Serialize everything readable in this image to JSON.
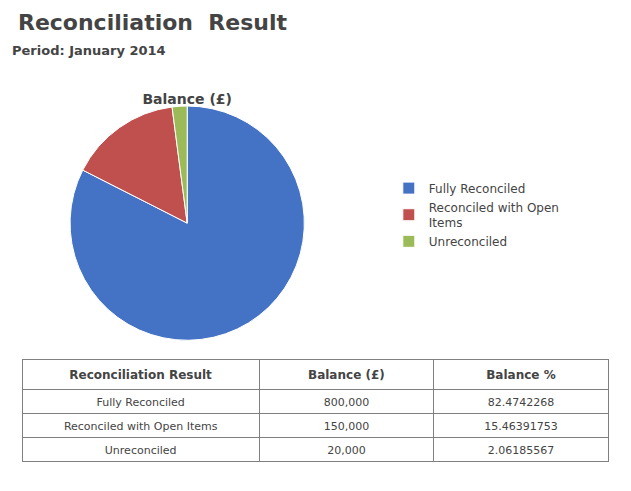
{
  "title": "Reconciliation  Result",
  "subtitle": "Period: January 2014",
  "chart_data": [
    {
      "type": "pie",
      "title": "Balance (£)",
      "categories": [
        "Fully Reconciled",
        "Reconciled with Open\nItems",
        "Unreconciled"
      ],
      "values": [
        800000,
        150000,
        20000
      ],
      "colors": [
        "#4472C4",
        "#C0504D",
        "#9BBB59"
      ],
      "legend": "right"
    },
    {
      "type": "table",
      "columns": [
        "Reconciliation Result",
        "Balance (£)",
        "Balance %"
      ],
      "rows": [
        [
          "Fully Reconciled",
          "800,000",
          "82.4742268"
        ],
        [
          "Reconciled with Open Items",
          "150,000",
          "15.46391753"
        ],
        [
          "Unreconciled",
          "20,000",
          "2.06185567"
        ]
      ]
    }
  ]
}
